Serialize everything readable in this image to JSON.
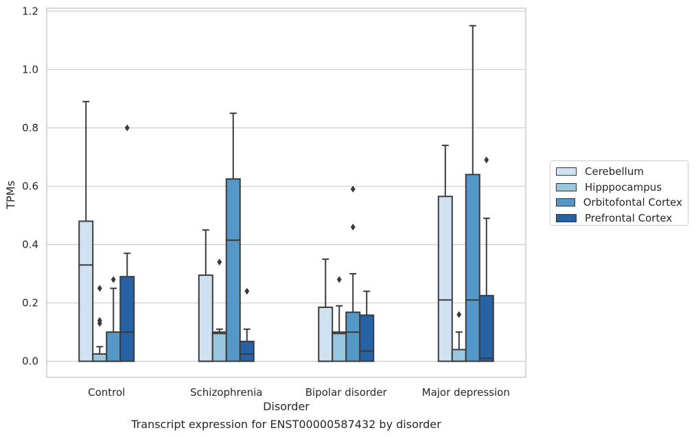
{
  "chart_data": {
    "type": "box",
    "caption": "Transcript expression for ENST00000587432 by disorder",
    "xlabel": "Disorder",
    "ylabel": "TPMs",
    "ylim": [
      -0.055,
      1.21
    ],
    "yticks": [
      "0.0",
      "0.2",
      "0.4",
      "0.6",
      "0.8",
      "1.0",
      "1.2"
    ],
    "grid": "horizontal",
    "legend_position": "right",
    "categories": [
      "Control",
      "Schizophrenia",
      "Bipolar disorder",
      "Major depression"
    ],
    "series": [
      {
        "name": "Cerebellum",
        "color": "#d0e1f2",
        "boxes": [
          {
            "min": 0.0,
            "q1": 0.0,
            "median": 0.33,
            "q3": 0.48,
            "max": 0.89,
            "outliers": []
          },
          {
            "min": 0.0,
            "q1": 0.0,
            "median": 0.0,
            "q3": 0.295,
            "max": 0.45,
            "outliers": []
          },
          {
            "min": 0.0,
            "q1": 0.0,
            "median": 0.0,
            "q3": 0.185,
            "max": 0.35,
            "outliers": []
          },
          {
            "min": 0.0,
            "q1": 0.0,
            "median": 0.21,
            "q3": 0.565,
            "max": 0.74,
            "outliers": []
          }
        ]
      },
      {
        "name": "Hipppocampus",
        "color": "#9ac7e0",
        "boxes": [
          {
            "min": 0.0,
            "q1": 0.0,
            "median": 0.0,
            "q3": 0.025,
            "max": 0.05,
            "outliers": [
              0.13,
              0.14,
              0.25
            ]
          },
          {
            "min": 0.0,
            "q1": 0.0,
            "median": 0.095,
            "q3": 0.1,
            "max": 0.11,
            "outliers": [
              0.34
            ]
          },
          {
            "min": 0.0,
            "q1": 0.0,
            "median": 0.095,
            "q3": 0.1,
            "max": 0.19,
            "outliers": [
              0.28
            ]
          },
          {
            "min": 0.0,
            "q1": 0.0,
            "median": 0.0,
            "q3": 0.04,
            "max": 0.1,
            "outliers": [
              0.16
            ]
          }
        ]
      },
      {
        "name": "Orbitofontal Cortex",
        "color": "#5597c6",
        "boxes": [
          {
            "min": 0.0,
            "q1": 0.0,
            "median": 0.0,
            "q3": 0.1,
            "max": 0.25,
            "outliers": [
              0.28
            ]
          },
          {
            "min": 0.0,
            "q1": 0.0,
            "median": 0.415,
            "q3": 0.625,
            "max": 0.85,
            "outliers": []
          },
          {
            "min": 0.0,
            "q1": 0.0,
            "median": 0.1,
            "q3": 0.168,
            "max": 0.3,
            "outliers": [
              0.46,
              0.59
            ]
          },
          {
            "min": 0.0,
            "q1": 0.0,
            "median": 0.21,
            "q3": 0.64,
            "max": 1.15,
            "outliers": []
          }
        ]
      },
      {
        "name": "Prefrontal Cortex",
        "color": "#2563a6",
        "boxes": [
          {
            "min": 0.0,
            "q1": 0.0,
            "median": 0.1,
            "q3": 0.29,
            "max": 0.37,
            "outliers": [
              0.8
            ]
          },
          {
            "min": 0.0,
            "q1": 0.0,
            "median": 0.025,
            "q3": 0.068,
            "max": 0.11,
            "outliers": [
              0.24
            ]
          },
          {
            "min": 0.0,
            "q1": 0.0,
            "median": 0.035,
            "q3": 0.158,
            "max": 0.24,
            "outliers": []
          },
          {
            "min": 0.0,
            "q1": 0.0,
            "median": 0.01,
            "q3": 0.225,
            "max": 0.49,
            "outliers": [
              0.69
            ]
          }
        ]
      }
    ]
  }
}
